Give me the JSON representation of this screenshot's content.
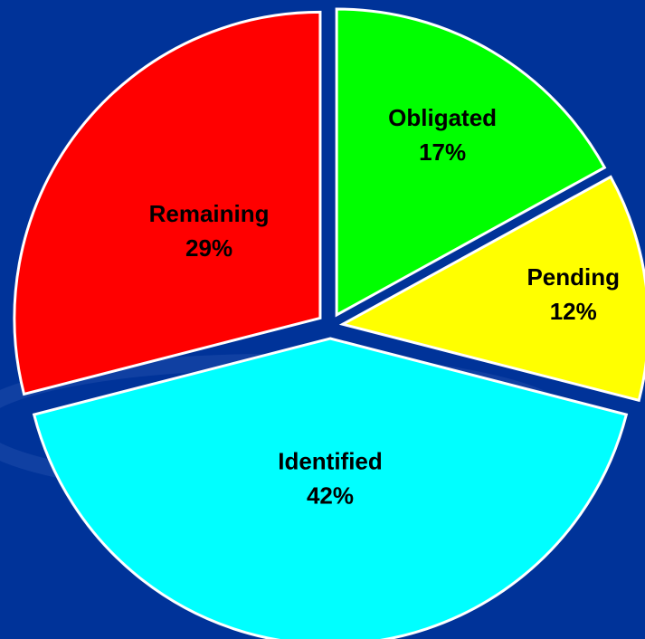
{
  "chart_data": {
    "type": "pie",
    "categories": [
      "Obligated",
      "Pending",
      "Identified",
      "Remaining"
    ],
    "values": [
      17,
      12,
      42,
      29
    ],
    "value_labels": [
      "17%",
      "12%",
      "42%",
      "29%"
    ],
    "colors": [
      "#00ff00",
      "#ffff00",
      "#00ffff",
      "#ff0000"
    ],
    "start_angle": 0,
    "direction": "clockwise",
    "exploded": true
  }
}
